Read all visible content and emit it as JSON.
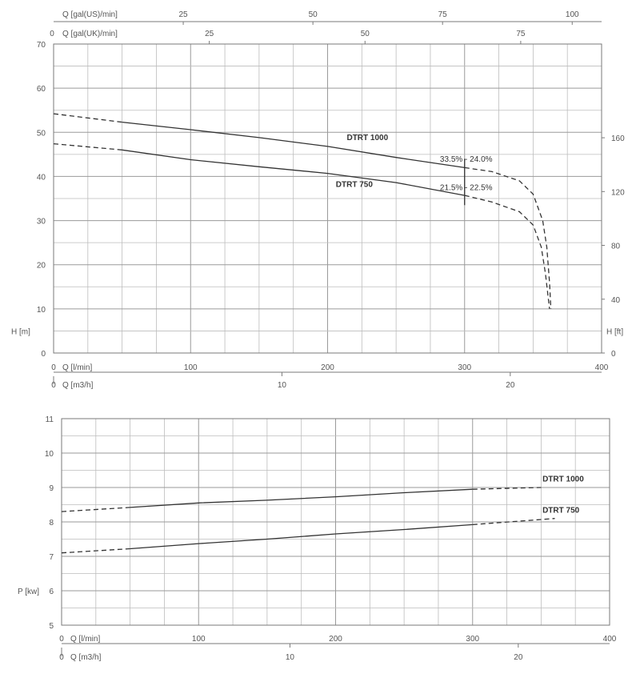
{
  "chart_data": [
    {
      "type": "line",
      "xlabel": "Q [l/min]",
      "ylabel": "H [m]",
      "y2label": "H [ft]",
      "x": {
        "min": 0,
        "max": 400,
        "ticks": [
          0,
          100,
          200,
          300,
          400
        ]
      },
      "ylim": [
        0,
        70
      ],
      "yticks": [
        0,
        10,
        20,
        30,
        40,
        50,
        60,
        70
      ],
      "y2ticks": [
        0,
        40,
        80,
        120,
        160
      ],
      "top_axes": [
        {
          "label": "Q [gal(US)/min]",
          "ticks": [
            25,
            50,
            75,
            100
          ]
        },
        {
          "label": "Q [gal(UK)/min]",
          "ticks": [
            0,
            25,
            50,
            75
          ]
        }
      ],
      "bottom_axis2": {
        "label": "Q [m3/h]",
        "ticks": [
          0,
          10,
          20
        ]
      },
      "grid": true,
      "series": [
        {
          "name": "DTRT 1000",
          "dashed_low": [
            [
              0,
              54.2
            ],
            [
              50,
              52.3
            ]
          ],
          "solid": [
            [
              50,
              52.3
            ],
            [
              100,
              50.6
            ],
            [
              150,
              48.8
            ],
            [
              200,
              46.8
            ],
            [
              250,
              44.3
            ],
            [
              300,
              42.0
            ]
          ],
          "dashed_high": [
            [
              300,
              42.0
            ],
            [
              320,
              41.1
            ],
            [
              340,
              39.0
            ],
            [
              350,
              36.0
            ],
            [
              357,
              30.0
            ],
            [
              360,
              24.0
            ],
            [
              362,
              16.0
            ],
            [
              363,
              10.0
            ]
          ]
        },
        {
          "name": "DTRT 750",
          "dashed_low": [
            [
              0,
              47.4
            ],
            [
              50,
              46.0
            ]
          ],
          "solid": [
            [
              50,
              46.0
            ],
            [
              100,
              43.8
            ],
            [
              150,
              42.2
            ],
            [
              200,
              40.7
            ],
            [
              250,
              38.6
            ],
            [
              300,
              35.7
            ]
          ],
          "dashed_high": [
            [
              300,
              35.7
            ],
            [
              320,
              34.2
            ],
            [
              340,
              32.0
            ],
            [
              350,
              29.0
            ],
            [
              356,
              24.0
            ],
            [
              359,
              18.0
            ],
            [
              362,
              10.0
            ]
          ]
        }
      ],
      "curve_labels": [
        "DTRT 1000",
        "DTRT 750"
      ],
      "efficiency_labels": [
        "33.5% - 24.0%",
        "21.5% - 22.5%"
      ],
      "marker_x": 300
    },
    {
      "type": "line",
      "xlabel": "Q [l/min]",
      "ylabel": "P [kw]",
      "x": {
        "min": 0,
        "max": 400,
        "ticks": [
          0,
          100,
          200,
          300,
          400
        ]
      },
      "ylim": [
        5,
        11
      ],
      "yticks": [
        5,
        6,
        7,
        8,
        9,
        10,
        11
      ],
      "bottom_axis2": {
        "label": "Q [m3/h]",
        "ticks": [
          0,
          10,
          20
        ]
      },
      "grid": true,
      "series": [
        {
          "name": "DTRT 1000",
          "dashed_low": [
            [
              0,
              8.3
            ],
            [
              50,
              8.42
            ]
          ],
          "solid": [
            [
              50,
              8.42
            ],
            [
              100,
              8.55
            ],
            [
              150,
              8.63
            ],
            [
              200,
              8.73
            ],
            [
              250,
              8.85
            ],
            [
              300,
              8.95
            ]
          ],
          "dashed_high": [
            [
              300,
              8.95
            ],
            [
              350,
              9.0
            ]
          ]
        },
        {
          "name": "DTRT 750",
          "dashed_low": [
            [
              0,
              7.1
            ],
            [
              50,
              7.22
            ]
          ],
          "solid": [
            [
              50,
              7.22
            ],
            [
              100,
              7.37
            ],
            [
              150,
              7.5
            ],
            [
              200,
              7.65
            ],
            [
              250,
              7.78
            ],
            [
              300,
              7.92
            ]
          ],
          "dashed_high": [
            [
              300,
              7.92
            ],
            [
              360,
              8.1
            ]
          ]
        }
      ],
      "curve_labels": [
        "DTRT 1000",
        "DTRT 750"
      ]
    }
  ]
}
